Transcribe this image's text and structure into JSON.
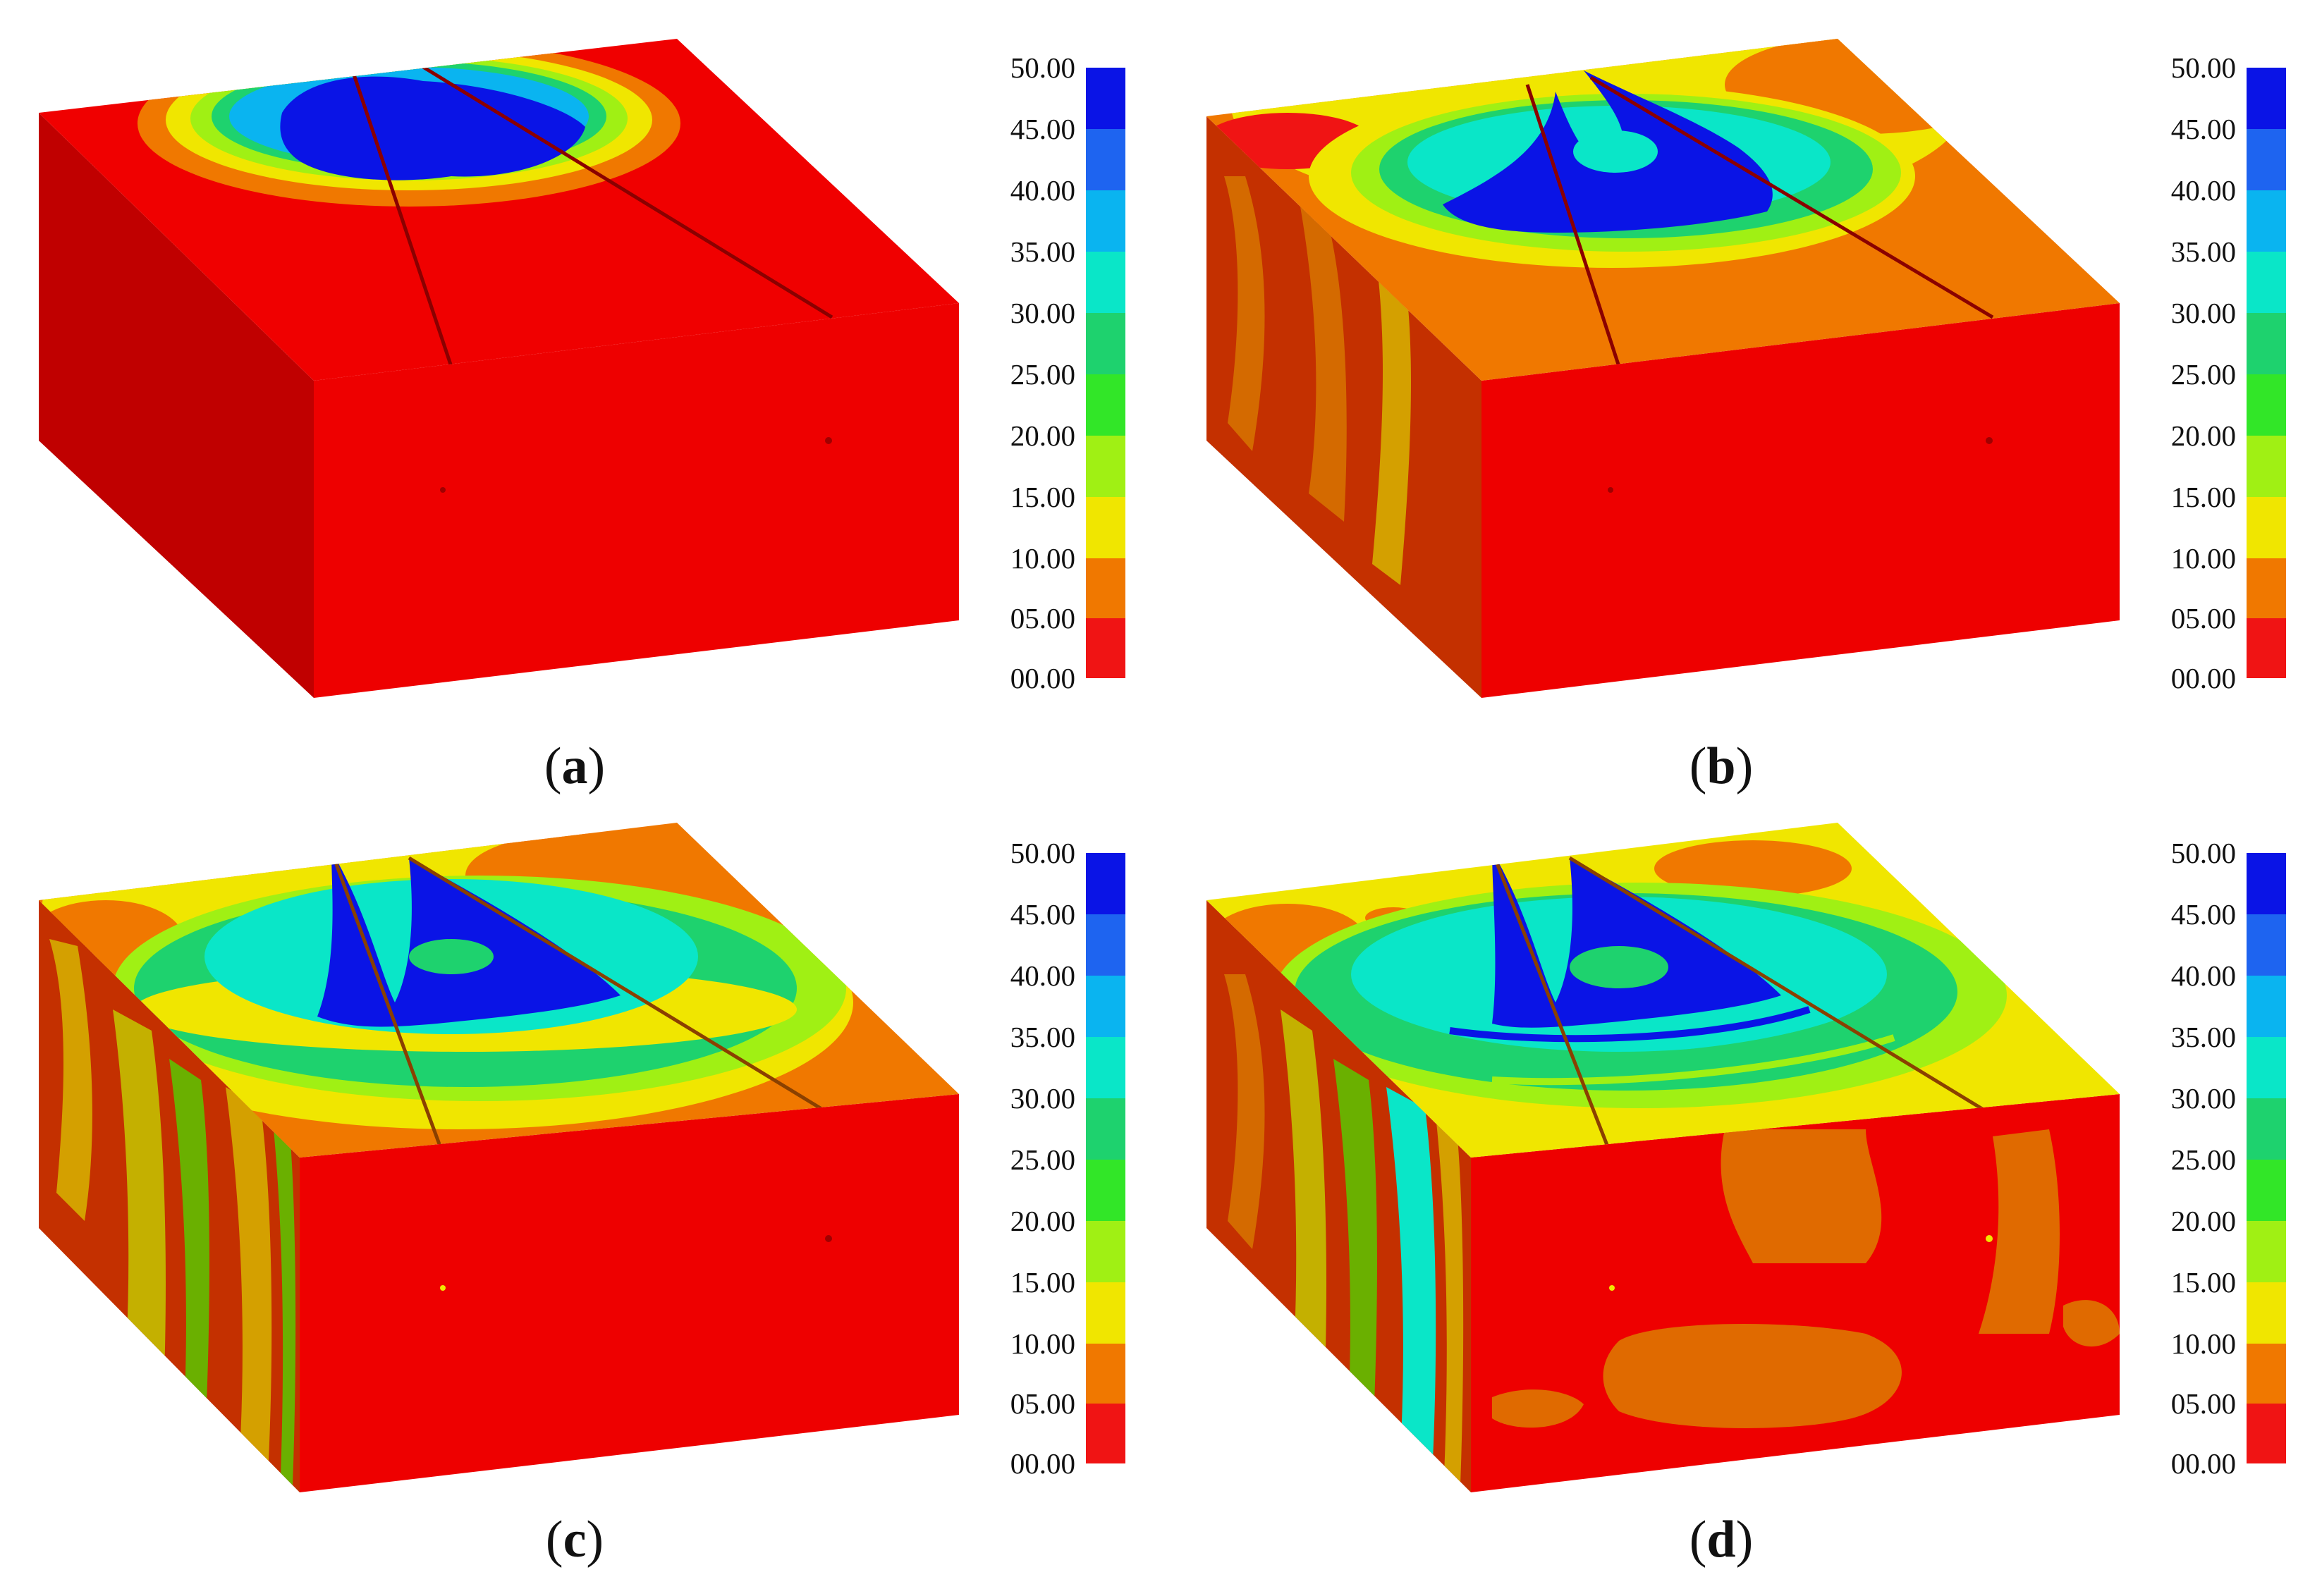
{
  "legend": {
    "ticks": [
      "50.00",
      "45.00",
      "40.00",
      "35.00",
      "30.00",
      "25.00",
      "20.00",
      "15.00",
      "10.00",
      "05.00",
      "00.00"
    ],
    "colors": [
      "#0a14e6",
      "#1e64f0",
      "#0ab4f0",
      "#0ae6c8",
      "#1ed26e",
      "#32e628",
      "#a0f014",
      "#f0e600",
      "#f07800",
      "#f01414"
    ]
  },
  "panels": [
    {
      "id": "a",
      "caption_open": "(",
      "caption_letter": "a",
      "caption_close": ")"
    },
    {
      "id": "b",
      "caption_open": "(",
      "caption_letter": "b",
      "caption_close": ")"
    },
    {
      "id": "c",
      "caption_open": "(",
      "caption_letter": "c",
      "caption_close": ")"
    },
    {
      "id": "d",
      "caption_open": "(",
      "caption_letter": "d",
      "caption_close": ")"
    }
  ]
}
